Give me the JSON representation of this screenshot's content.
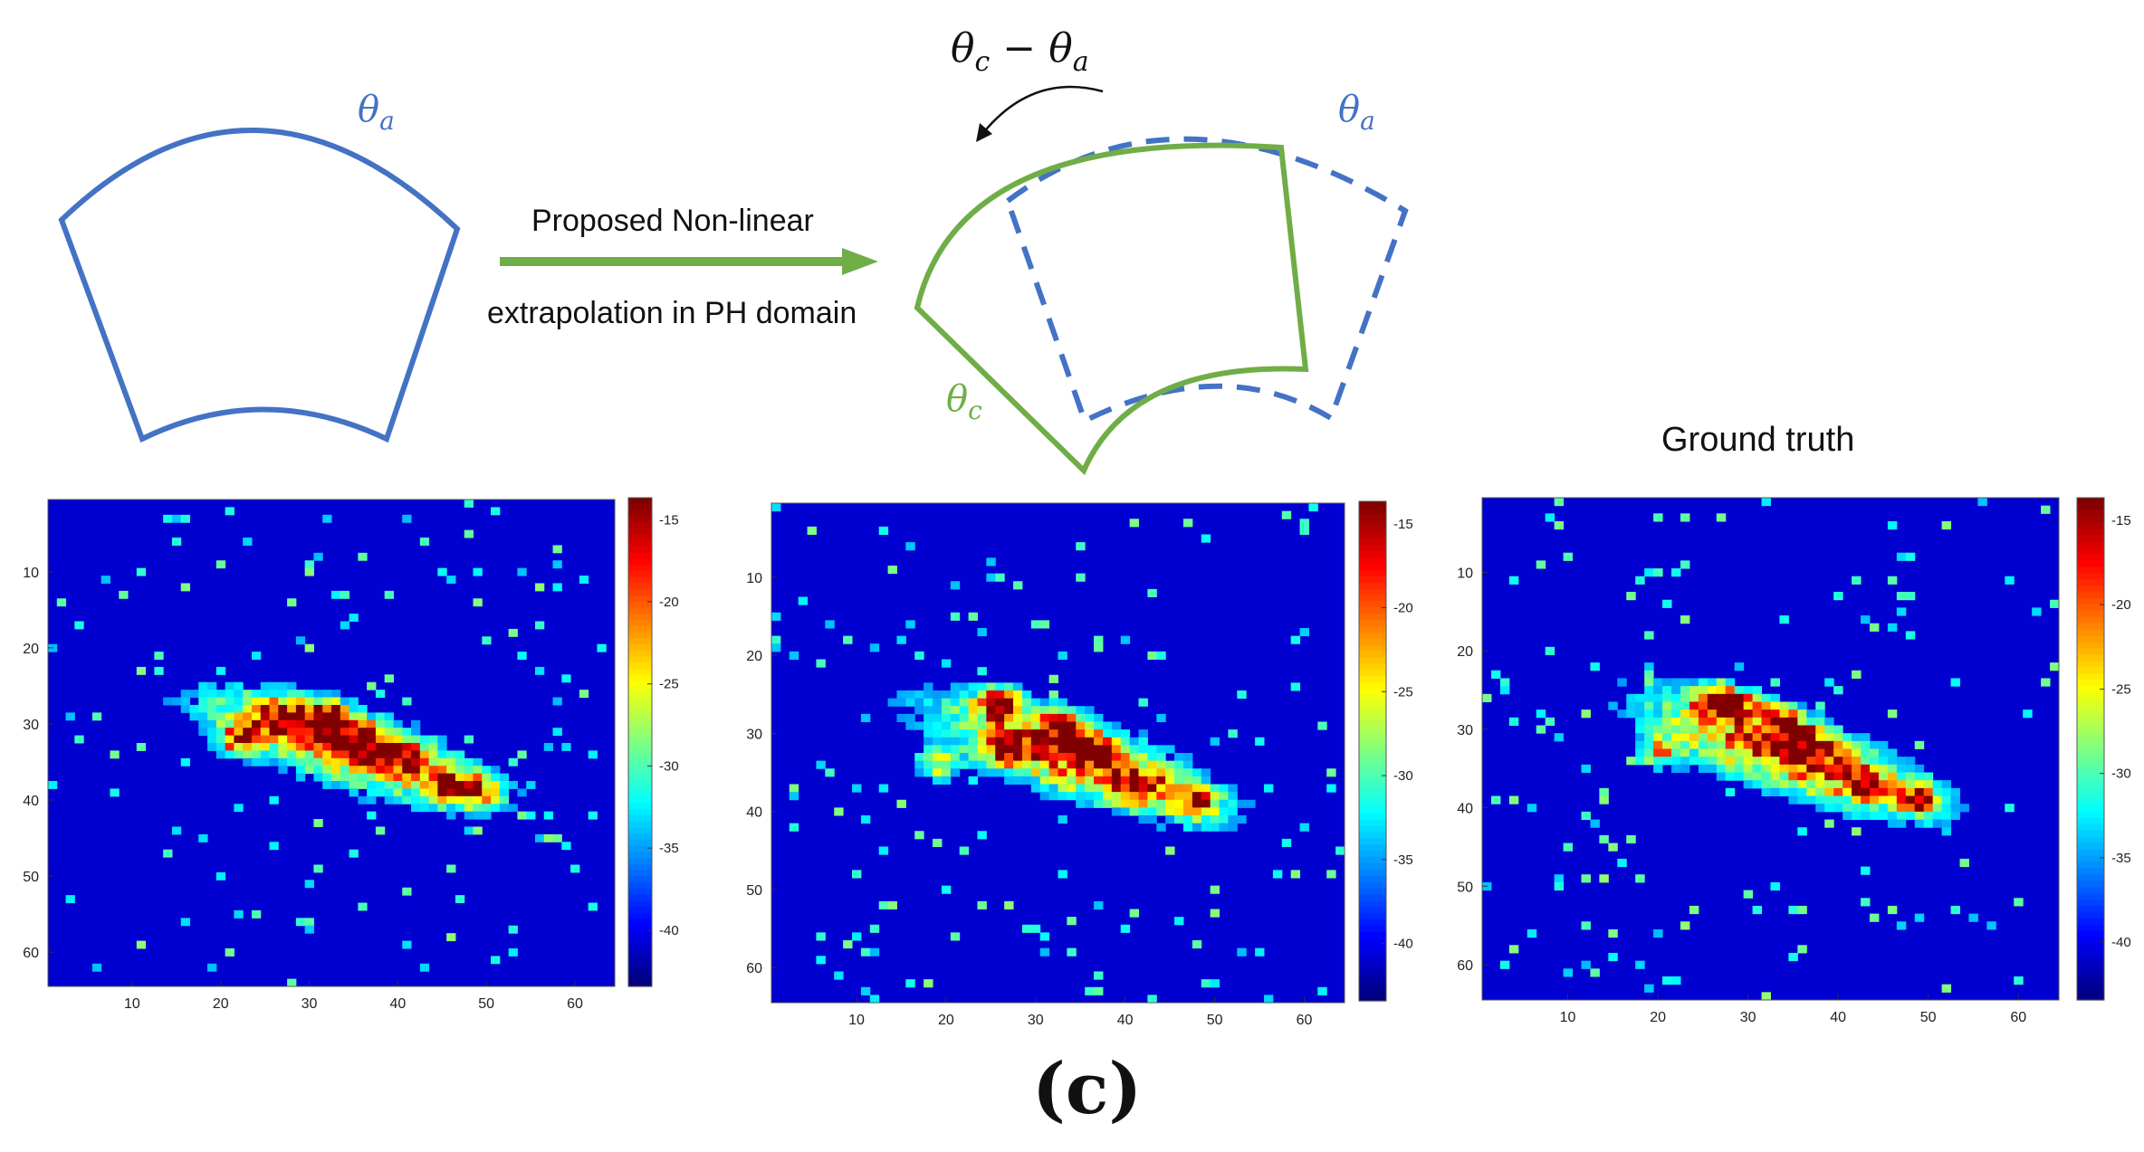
{
  "diagram": {
    "theta_a_label": "θ",
    "theta_a_sub": "a",
    "theta_c_label": "θ",
    "theta_c_sub": "c",
    "rotation_label_lhs": "θ",
    "rotation_label_lhs_sub": "c",
    "rotation_label_op": "−",
    "rotation_label_rhs": "θ",
    "rotation_label_rhs_sub": "a",
    "arrow_line1": "Proposed Non-linear",
    "arrow_line2": "extrapolation in PH domain",
    "colors": {
      "blue": "#4472c4",
      "green": "#70ad47"
    }
  },
  "panels": [
    {
      "title": "",
      "x_ticks": [
        "10",
        "20",
        "30",
        "40",
        "50",
        "60"
      ],
      "y_ticks": [
        "10",
        "20",
        "30",
        "40",
        "50",
        "60"
      ],
      "colorbar_ticks": [
        "-15",
        "-20",
        "-25",
        "-30",
        "-35",
        "-40"
      ]
    },
    {
      "title": "",
      "x_ticks": [
        "10",
        "20",
        "30",
        "40",
        "50",
        "60"
      ],
      "y_ticks": [
        "10",
        "20",
        "30",
        "40",
        "50",
        "60"
      ],
      "colorbar_ticks": [
        "-15",
        "-20",
        "-25",
        "-30",
        "-35",
        "-40"
      ]
    },
    {
      "title": "Ground truth",
      "x_ticks": [
        "10",
        "20",
        "30",
        "40",
        "50",
        "60"
      ],
      "y_ticks": [
        "10",
        "20",
        "30",
        "40",
        "50",
        "60"
      ],
      "colorbar_ticks": [
        "-15",
        "-20",
        "-25",
        "-30",
        "-35",
        "-40"
      ]
    }
  ],
  "caption": "(c)"
}
